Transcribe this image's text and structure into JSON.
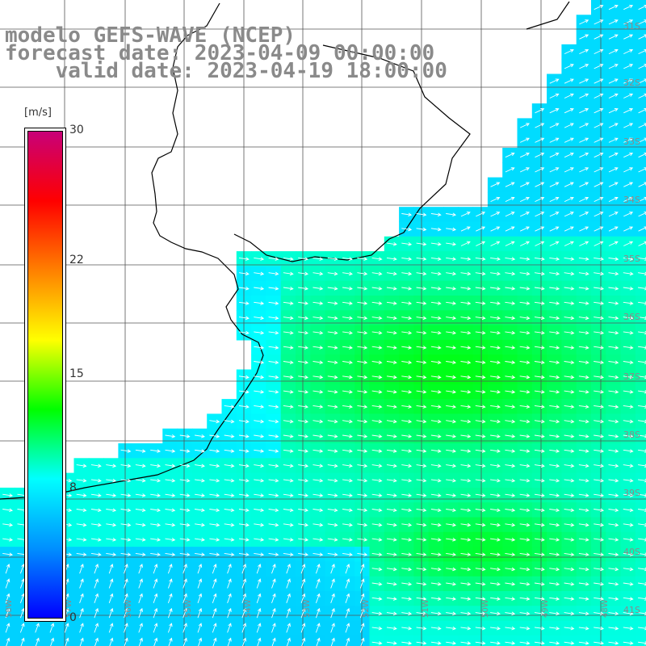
{
  "title": {
    "line1": "modelo GEFS-WAVE (NCEP)",
    "line2": "forecast date: 2023-04-09 00:00:00",
    "line3": "    valid date: 2023-04-19 18:00:00"
  },
  "colorbar": {
    "unit": "[m/s]",
    "ticks": [
      {
        "label": "30",
        "value": 30
      },
      {
        "label": "22",
        "value": 22
      },
      {
        "label": "15",
        "value": 15
      },
      {
        "label": "8",
        "value": 8
      },
      {
        "label": "0",
        "value": 0
      }
    ],
    "stops": [
      "#0000ff",
      "#0090ff",
      "#00ffff",
      "#00ff00",
      "#ffff00",
      "#ff8000",
      "#ff0000",
      "#c80078"
    ]
  },
  "grid": {
    "lat_labels": [
      "31S",
      "32S",
      "33S",
      "34S",
      "35S",
      "36S",
      "37S",
      "38S",
      "39S",
      "40S",
      "41S"
    ],
    "lon_labels": [
      "58W",
      "57W",
      "56W",
      "55W",
      "54W",
      "53W",
      "52W",
      "51W",
      "50W",
      "49W",
      "48W"
    ]
  },
  "colors": {
    "land": "#ffffff",
    "coast": "#000000",
    "grid": "#555555",
    "arrow": "#ffffff"
  }
}
